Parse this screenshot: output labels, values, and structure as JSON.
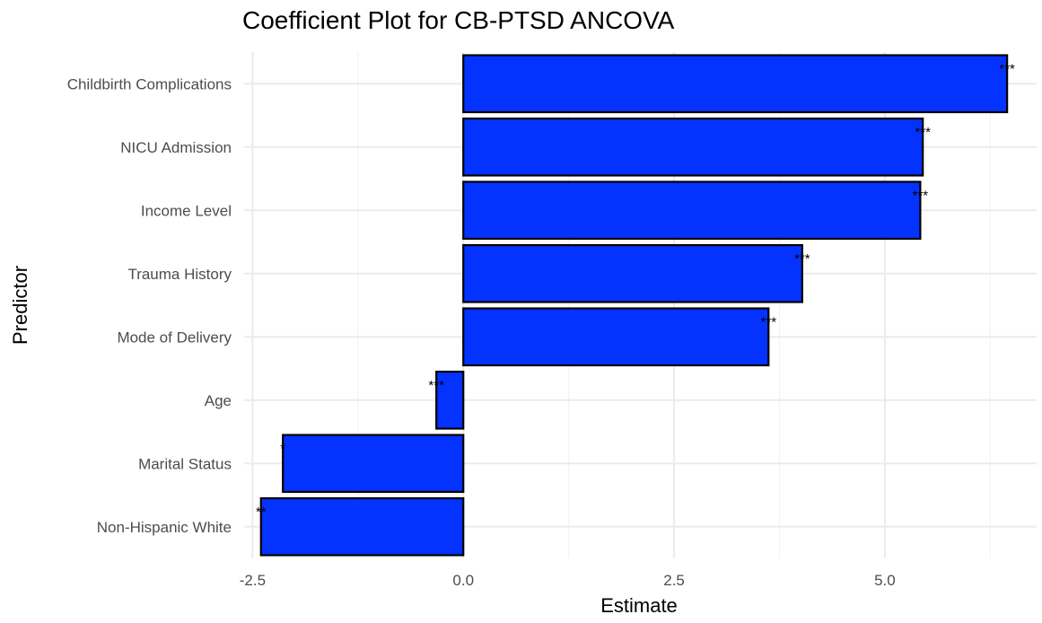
{
  "chart_data": {
    "type": "bar",
    "orientation": "horizontal",
    "title": "Coefficient Plot for CB-PTSD ANCOVA",
    "xlabel": "Estimate",
    "ylabel": "Predictor",
    "categories": [
      "Childbirth Complications",
      "NICU Admission",
      "Income Level",
      "Trauma History",
      "Mode of Delivery",
      "Age",
      "Marital Status",
      "Non-Hispanic White"
    ],
    "values": [
      6.45,
      5.45,
      5.42,
      4.02,
      3.62,
      -0.32,
      -2.14,
      -2.4
    ],
    "significance": [
      "***",
      "***",
      "***",
      "***",
      "***",
      "***",
      "*",
      "**"
    ],
    "xlim": [
      -2.6,
      6.8
    ],
    "xticks": [
      -2.5,
      0.0,
      2.5,
      5.0
    ],
    "xtick_labels": [
      "-2.5",
      "0.0",
      "2.5",
      "5.0"
    ],
    "grid": true,
    "legend": "none",
    "colors": {
      "bar_fill": "#0433ff",
      "bar_border": "#000000"
    }
  }
}
